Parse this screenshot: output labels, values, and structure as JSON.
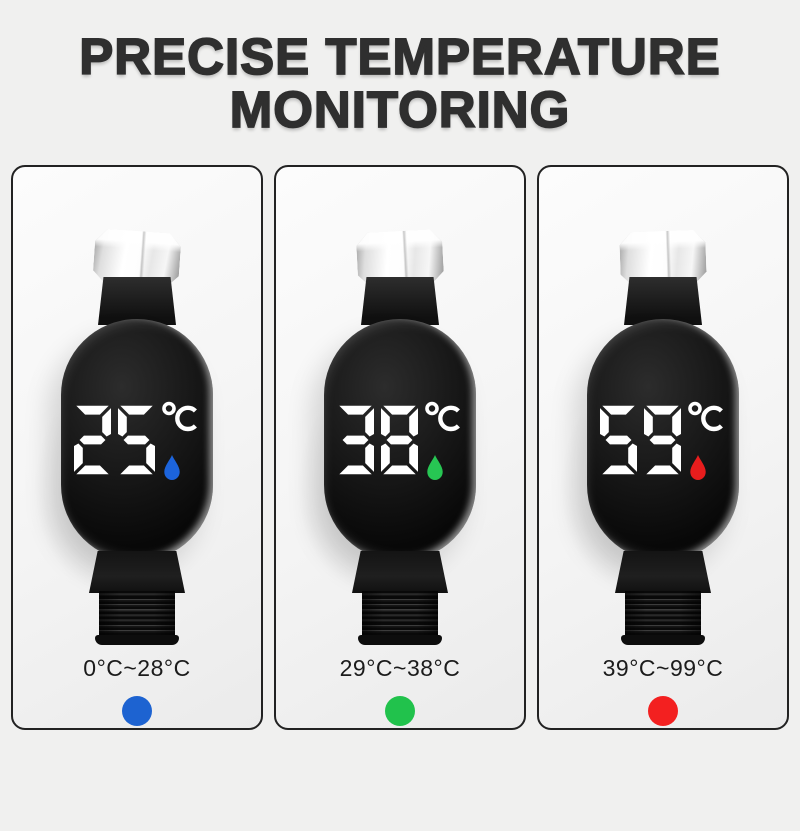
{
  "title": {
    "line1": "PRECISE TEMPERATURE",
    "line2": "MONITORING"
  },
  "display": {
    "digit_color": "#ffffff",
    "unit_symbol": "°C"
  },
  "panels": [
    {
      "name": "cold-water",
      "temperature": "25",
      "unit": "°C",
      "droplet_color": "#1c64dc",
      "range_label": "0°C~28°C",
      "dot_color": "#1d63d1"
    },
    {
      "name": "warm-water",
      "temperature": "38",
      "unit": "°C",
      "droplet_color": "#27c653",
      "range_label": "29°C~38°C",
      "dot_color": "#21c24c"
    },
    {
      "name": "hot-water",
      "temperature": "59",
      "unit": "°C",
      "droplet_color": "#e81d1d",
      "range_label": "39°C~99°C",
      "dot_color": "#f32020"
    }
  ],
  "colors": {
    "background": "#f0f0ef",
    "title_text": "#2f2f2f",
    "panel_border": "#222222",
    "device_body": "#111111",
    "range_text": "#1b1b1b"
  }
}
